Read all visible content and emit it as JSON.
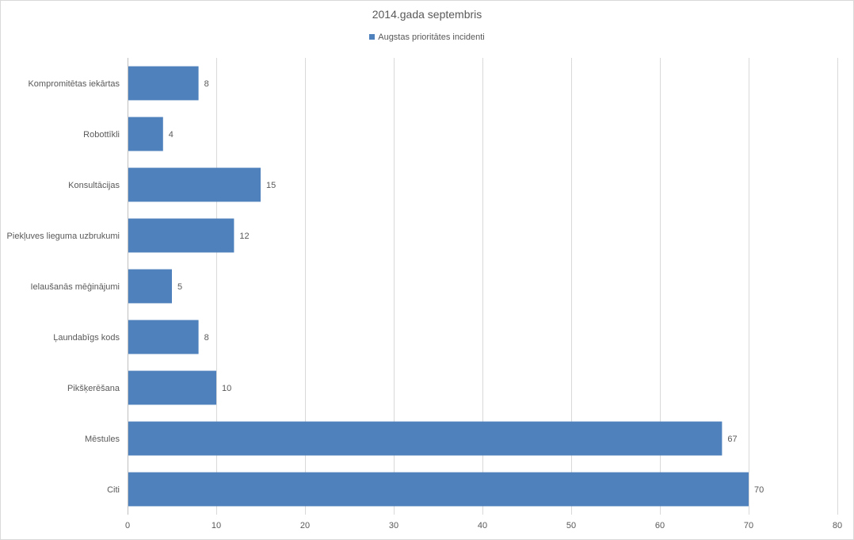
{
  "chart_data": {
    "type": "bar",
    "orientation": "horizontal",
    "title": "2014.gada septembris",
    "categories": [
      "Kompromitētas iekārtas",
      "Robottīkli",
      "Konsultācijas",
      "Piekļuves lieguma uzbrukumi",
      "Ielaušanās mēģinājumi",
      "Ļaundabīgs kods",
      "Pikšķerēšana",
      "Mēstules",
      "Citi"
    ],
    "series": [
      {
        "name": "Augstas prioritātes incidenti",
        "values": [
          8,
          4,
          15,
          12,
          5,
          8,
          10,
          67,
          70
        ],
        "color": "#4f81bd"
      }
    ],
    "xlim": [
      0,
      80
    ],
    "xticks": [
      0,
      10,
      20,
      30,
      40,
      50,
      60,
      70,
      80
    ],
    "xlabel": "",
    "ylabel": "",
    "grid": "vertical",
    "legend_position": "top",
    "data_labels": true
  }
}
